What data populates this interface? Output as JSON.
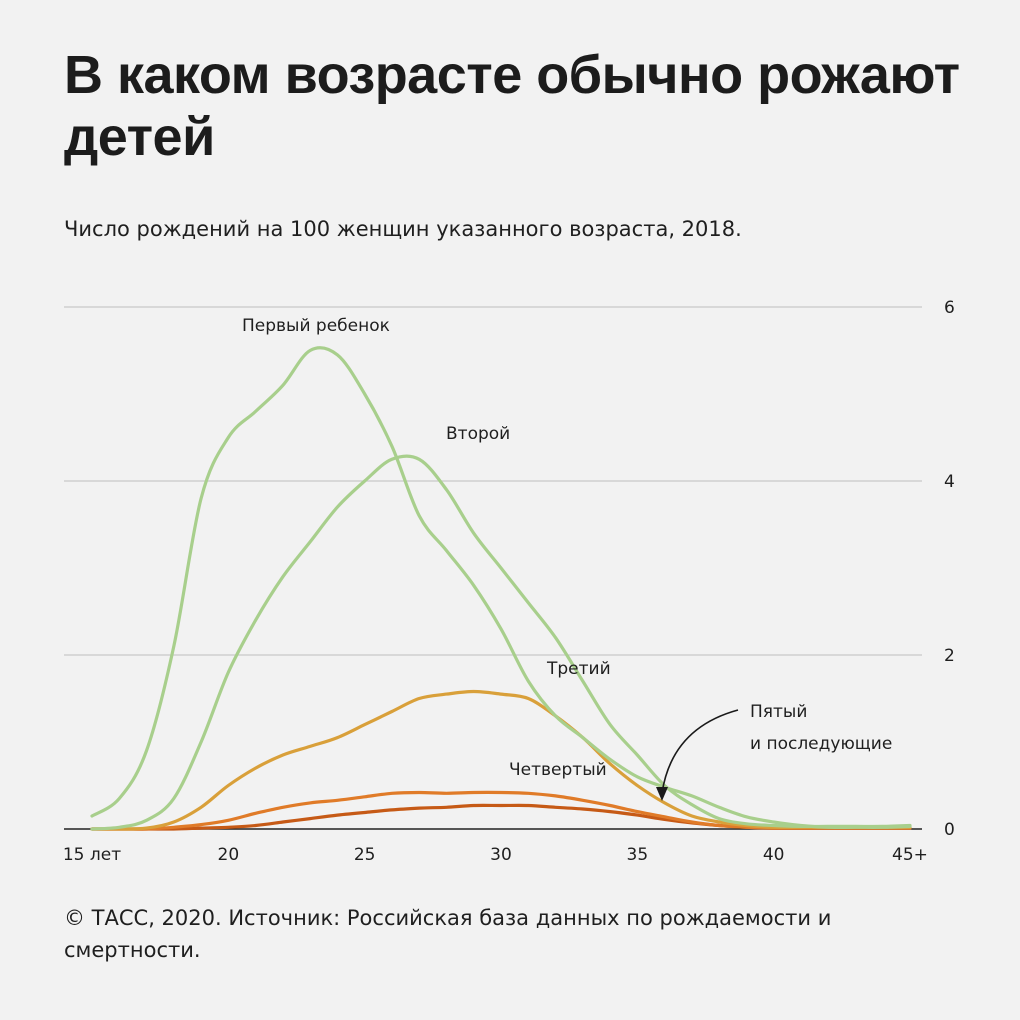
{
  "title": "В каком возрасте обычно рожают детей",
  "subtitle": "Число рождений на 100 женщин указанного возраста, 2018.",
  "source": "© ТАСС, 2020. Источник: Российская база данных по рождаемости и смертности.",
  "chart_data": {
    "type": "line",
    "title": "В каком возрасте обычно рожают детей",
    "subtitle": "Число рождений на 100 женщин указанного возраста, 2018.",
    "xlabel": "",
    "ylabel": "",
    "xlim": [
      15,
      45
    ],
    "ylim": [
      0,
      6
    ],
    "x_ticks": [
      {
        "value": 15,
        "label": "15 лет"
      },
      {
        "value": 20,
        "label": "20"
      },
      {
        "value": 25,
        "label": "25"
      },
      {
        "value": 30,
        "label": "30"
      },
      {
        "value": 35,
        "label": "35"
      },
      {
        "value": 40,
        "label": "40"
      },
      {
        "value": 45,
        "label": "45+"
      }
    ],
    "y_ticks": [
      0,
      2,
      4,
      6
    ],
    "grid": true,
    "y_axis_side": "right",
    "x": [
      15,
      16,
      17,
      18,
      19,
      20,
      21,
      22,
      23,
      24,
      25,
      26,
      27,
      28,
      29,
      30,
      31,
      32,
      33,
      34,
      35,
      36,
      37,
      38,
      39,
      40,
      41,
      42,
      43,
      44,
      45
    ],
    "series": [
      {
        "name": "Первый ребенок",
        "color": "#a8cf8c",
        "values": [
          0.15,
          0.35,
          0.9,
          2.1,
          3.8,
          4.5,
          4.8,
          5.1,
          5.5,
          5.45,
          5.0,
          4.4,
          3.6,
          3.2,
          2.8,
          2.3,
          1.7,
          1.3,
          1.05,
          0.8,
          0.6,
          0.48,
          0.38,
          0.25,
          0.14,
          0.08,
          0.04,
          0.02,
          0.02,
          0.02,
          0.03
        ]
      },
      {
        "name": "Второй",
        "color": "#a8cf8c",
        "values": [
          0.0,
          0.02,
          0.1,
          0.35,
          1.0,
          1.8,
          2.4,
          2.9,
          3.3,
          3.7,
          4.0,
          4.25,
          4.25,
          3.9,
          3.4,
          3.0,
          2.6,
          2.2,
          1.7,
          1.2,
          0.85,
          0.5,
          0.28,
          0.12,
          0.06,
          0.04,
          0.03,
          0.03,
          0.03,
          0.03,
          0.04
        ]
      },
      {
        "name": "Третий",
        "color": "#d9a03a",
        "values": [
          0.0,
          0.0,
          0.01,
          0.08,
          0.25,
          0.5,
          0.7,
          0.85,
          0.95,
          1.05,
          1.2,
          1.35,
          1.5,
          1.55,
          1.58,
          1.55,
          1.5,
          1.3,
          1.05,
          0.75,
          0.5,
          0.3,
          0.15,
          0.08,
          0.04,
          0.02,
          0.02,
          0.02,
          0.02,
          0.02,
          0.02
        ]
      },
      {
        "name": "Четвертый",
        "color": "#e07b28",
        "values": [
          0.0,
          0.0,
          0.0,
          0.02,
          0.05,
          0.1,
          0.18,
          0.25,
          0.3,
          0.33,
          0.37,
          0.41,
          0.42,
          0.41,
          0.42,
          0.42,
          0.41,
          0.38,
          0.33,
          0.27,
          0.2,
          0.14,
          0.08,
          0.04,
          0.02,
          0.01,
          0.01,
          0.01,
          0.01,
          0.01,
          0.01
        ]
      },
      {
        "name": "Пятый и последующие",
        "color": "#c65a16",
        "values": [
          0.0,
          0.0,
          0.0,
          0.0,
          0.01,
          0.02,
          0.04,
          0.08,
          0.12,
          0.16,
          0.19,
          0.22,
          0.24,
          0.25,
          0.27,
          0.27,
          0.27,
          0.25,
          0.23,
          0.2,
          0.16,
          0.11,
          0.07,
          0.04,
          0.02,
          0.01,
          0.01,
          0.01,
          0.01,
          0.01,
          0.01
        ]
      }
    ],
    "labels": {
      "first": "Первый ребенок",
      "second": "Второй",
      "third": "Третий",
      "fourth": "Четвертый",
      "fifth_line1": "Пятый",
      "fifth_line2": "и последующие"
    }
  }
}
